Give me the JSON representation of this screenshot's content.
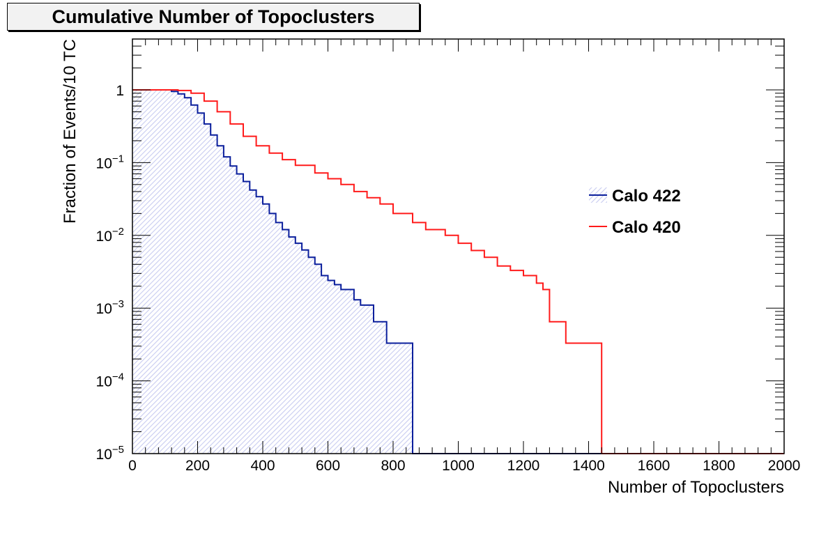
{
  "chart_data": {
    "type": "line",
    "title": "Cumulative Number of Topoclusters",
    "xlabel": "Number of Topoclusters",
    "ylabel": "Fraction of Events/10 TC",
    "xlim": [
      0,
      2000
    ],
    "ylim": [
      1e-05,
      5
    ],
    "yscale": "log",
    "bin_width": 10,
    "x_ticks": [
      0,
      200,
      400,
      600,
      800,
      1000,
      1200,
      1400,
      1600,
      1800,
      2000
    ],
    "y_ticks": [
      {
        "value": 1,
        "base": "1",
        "exp": ""
      },
      {
        "value": 0.1,
        "base": "10",
        "exp": "−1"
      },
      {
        "value": 0.01,
        "base": "10",
        "exp": "−2"
      },
      {
        "value": 0.001,
        "base": "10",
        "exp": "−3"
      },
      {
        "value": 0.0001,
        "base": "10",
        "exp": "−4"
      },
      {
        "value": 1e-05,
        "base": "10",
        "exp": "−5"
      }
    ],
    "grid": false,
    "legend_position": "right",
    "series": [
      {
        "name": "Calo 422",
        "color": "#0a1e9c",
        "fill": "hatched",
        "fill_color": "#c8ccf0",
        "x": [
          0,
          120,
          140,
          160,
          180,
          200,
          220,
          240,
          260,
          280,
          300,
          320,
          340,
          360,
          380,
          400,
          420,
          440,
          460,
          480,
          500,
          520,
          540,
          560,
          580,
          600,
          620,
          640,
          660,
          680,
          700,
          740,
          780,
          860
        ],
        "y": [
          1,
          0.95,
          0.88,
          0.78,
          0.62,
          0.48,
          0.34,
          0.24,
          0.17,
          0.12,
          0.09,
          0.07,
          0.055,
          0.042,
          0.034,
          0.027,
          0.02,
          0.015,
          0.012,
          0.0095,
          0.0078,
          0.0063,
          0.005,
          0.004,
          0.0028,
          0.0024,
          0.0021,
          0.0018,
          0.0018,
          0.0013,
          0.0011,
          0.00065,
          0.00033,
          1e-05
        ]
      },
      {
        "name": "Calo 420",
        "color": "#ff1a1a",
        "fill": "none",
        "x": [
          0,
          140,
          180,
          220,
          260,
          300,
          340,
          380,
          420,
          460,
          500,
          560,
          600,
          640,
          680,
          720,
          760,
          800,
          860,
          900,
          960,
          1000,
          1040,
          1080,
          1120,
          1160,
          1200,
          1240,
          1260,
          1280,
          1330,
          1440
        ],
        "y": [
          1,
          0.98,
          0.9,
          0.7,
          0.5,
          0.34,
          0.23,
          0.17,
          0.135,
          0.11,
          0.092,
          0.072,
          0.06,
          0.05,
          0.04,
          0.033,
          0.027,
          0.02,
          0.015,
          0.012,
          0.01,
          0.0078,
          0.0062,
          0.005,
          0.0038,
          0.0033,
          0.0028,
          0.0022,
          0.0018,
          0.00065,
          0.00033,
          1e-05
        ]
      }
    ]
  }
}
